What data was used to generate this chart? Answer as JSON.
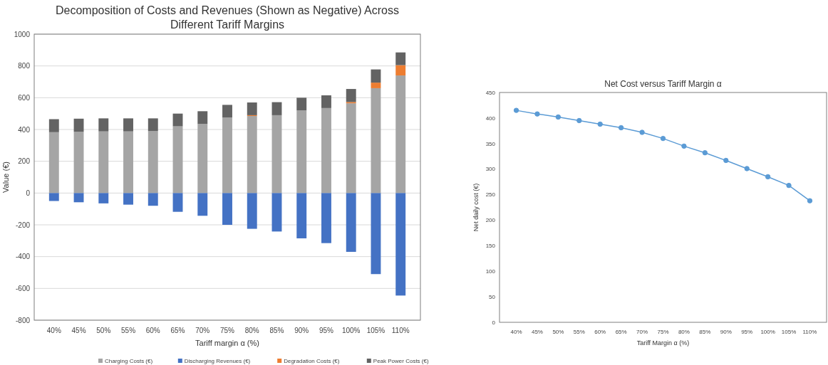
{
  "chart_data": [
    {
      "type": "bar",
      "title": "Decomposition of Costs and Revenues (Shown as Negative) Across Different Tariff Margins",
      "xlabel": "Tariff margin α (%)",
      "ylabel": "Value (€)",
      "categories": [
        "40%",
        "45%",
        "50%",
        "55%",
        "60%",
        "65%",
        "70%",
        "75%",
        "80%",
        "85%",
        "90%",
        "95%",
        "100%",
        "105%",
        "110%"
      ],
      "stacked": true,
      "ylim": [
        -800,
        1000
      ],
      "yticks": [
        -800,
        -600,
        -400,
        -200,
        0,
        200,
        400,
        600,
        800,
        1000
      ],
      "grid": "y",
      "legend": "bottom",
      "series": [
        {
          "name": "Charging Costs (€)",
          "color": "#a5a5a5",
          "values": [
            383,
            385,
            388,
            388,
            390,
            420,
            435,
            475,
            485,
            490,
            520,
            535,
            565,
            660,
            740
          ]
        },
        {
          "name": "Discharging Revenues (€)",
          "color": "#4472c4",
          "values": [
            -50,
            -58,
            -65,
            -73,
            -80,
            -118,
            -143,
            -200,
            -225,
            -242,
            -285,
            -315,
            -370,
            -510,
            -645
          ]
        },
        {
          "name": "Degradation Costs (€)",
          "color": "#ed7d31",
          "values": [
            0,
            0,
            0,
            0,
            0,
            0,
            0,
            0,
            5,
            0,
            0,
            0,
            8,
            35,
            65
          ]
        },
        {
          "name": "Peak Power Costs (€)",
          "color": "#636363",
          "values": [
            82,
            83,
            82,
            82,
            80,
            80,
            80,
            80,
            80,
            82,
            80,
            80,
            82,
            83,
            80
          ]
        }
      ]
    },
    {
      "type": "line",
      "title": "Net Cost versus Tariff Margin α",
      "xlabel": "Tariff Margin α (%)",
      "ylabel": "Net daily cost (€)",
      "categories": [
        "40%",
        "45%",
        "50%",
        "55%",
        "60%",
        "65%",
        "70%",
        "75%",
        "80%",
        "85%",
        "90%",
        "95%",
        "100%",
        "105%",
        "110%"
      ],
      "ylim": [
        0,
        450
      ],
      "yticks": [
        0,
        50,
        100,
        150,
        200,
        250,
        300,
        350,
        400,
        450
      ],
      "marker": "circle",
      "legend": false,
      "series": [
        {
          "color": "#5b9bd5",
          "values": [
            415,
            408,
            402,
            395,
            388,
            381,
            372,
            360,
            345,
            332,
            317,
            301,
            285,
            268,
            238
          ]
        }
      ]
    }
  ]
}
